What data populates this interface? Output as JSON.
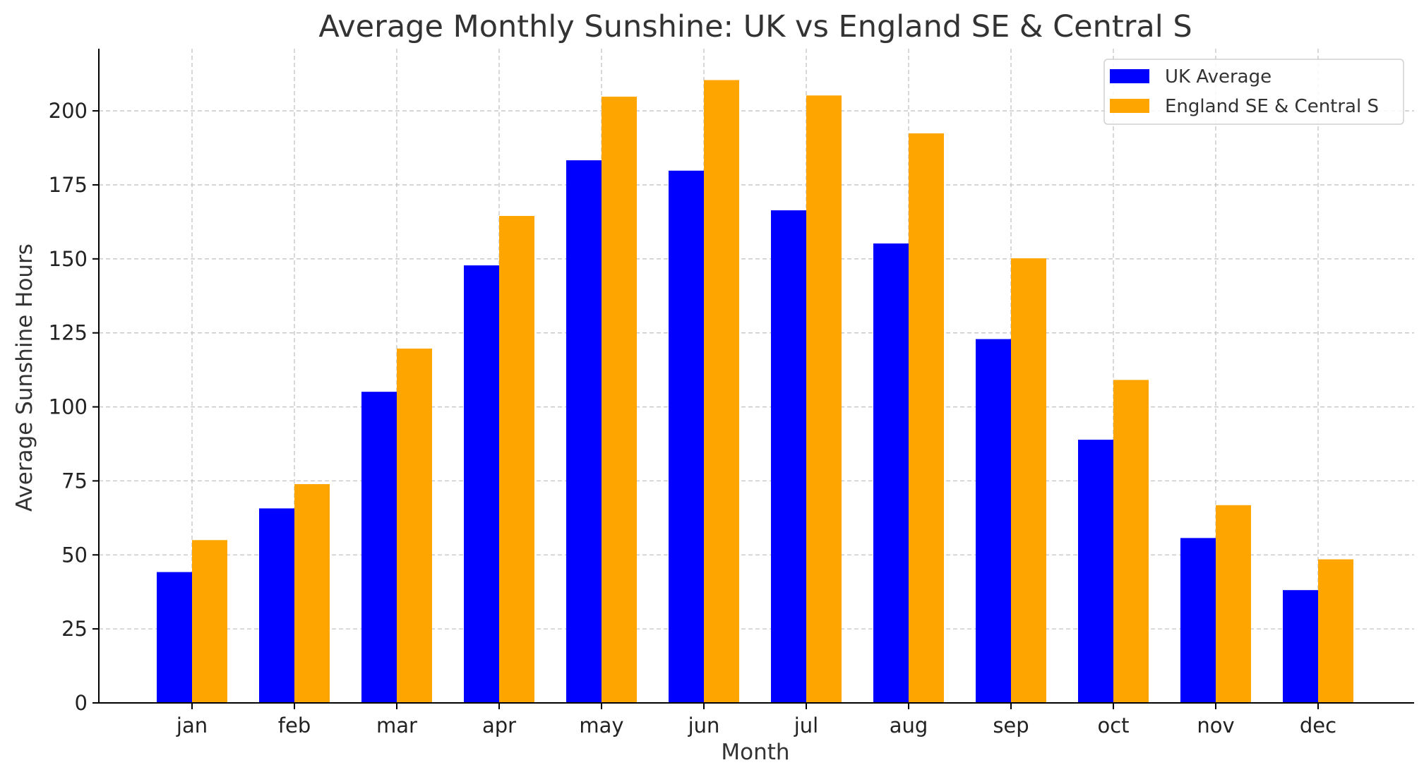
{
  "chart_data": {
    "type": "bar",
    "title": "Average Monthly Sunshine: UK vs England SE & Central S",
    "xlabel": "Month",
    "ylabel": "Average Sunshine Hours",
    "categories": [
      "jan",
      "feb",
      "mar",
      "apr",
      "may",
      "jun",
      "jul",
      "aug",
      "sep",
      "oct",
      "nov",
      "dec"
    ],
    "series": [
      {
        "name": "UK Average",
        "color": "#0000ff",
        "values": [
          44.2,
          65.7,
          105.1,
          147.8,
          183.3,
          179.8,
          166.4,
          155.2,
          122.9,
          88.9,
          55.7,
          38.1
        ]
      },
      {
        "name": "England SE & Central S",
        "color": "#ffa500",
        "values": [
          55.0,
          73.9,
          119.7,
          164.5,
          204.8,
          210.4,
          205.2,
          192.4,
          150.2,
          109.1,
          66.8,
          48.5
        ]
      }
    ],
    "ylim": [
      0,
      221
    ],
    "yticks": [
      0,
      25,
      50,
      75,
      100,
      125,
      150,
      175,
      200
    ],
    "grid": true,
    "legend_position": "top-right"
  }
}
